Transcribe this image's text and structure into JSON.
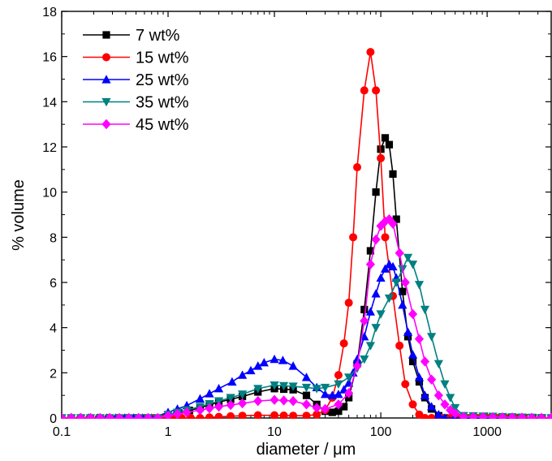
{
  "chart_data": {
    "type": "line",
    "xlabel": "diameter / μm",
    "ylabel": "% volume",
    "xscale": "log",
    "xlim": [
      0.1,
      4000
    ],
    "ylim": [
      0,
      18
    ],
    "x_ticks": [
      0.1,
      1,
      10,
      100,
      1000
    ],
    "x_tick_labels": [
      "0.1",
      "1",
      "10",
      "100",
      "1000"
    ],
    "y_ticks": [
      0,
      2,
      4,
      6,
      8,
      10,
      12,
      14,
      16,
      18
    ],
    "y_tick_labels": [
      "0",
      "2",
      "4",
      "6",
      "8",
      "10",
      "12",
      "14",
      "16",
      "18"
    ],
    "grid": false,
    "legend_position": "top-left",
    "series": [
      {
        "name": "7 wt%",
        "color": "#000000",
        "marker": "square",
        "x": [
          0.1,
          0.8,
          1,
          2,
          3,
          5,
          7,
          10,
          15,
          20,
          25,
          30,
          35,
          40,
          45,
          50,
          60,
          70,
          80,
          90,
          100,
          110,
          120,
          130,
          140,
          160,
          180,
          200,
          230,
          260,
          300,
          350,
          400,
          600,
          1000,
          4000
        ],
        "y": [
          0,
          0,
          0.1,
          0.45,
          0.7,
          0.95,
          1.15,
          1.3,
          1.25,
          1.0,
          0.6,
          0.3,
          0.25,
          0.3,
          0.5,
          0.9,
          2.4,
          4.8,
          7.4,
          10.0,
          11.9,
          12.4,
          12.1,
          10.8,
          8.8,
          5.6,
          3.6,
          2.5,
          1.6,
          0.9,
          0.4,
          0.1,
          0,
          0,
          0,
          0
        ]
      },
      {
        "name": "15 wt%",
        "color": "#ff0000",
        "marker": "circle",
        "x": [
          0.1,
          2,
          3,
          5,
          7,
          10,
          15,
          20,
          25,
          30,
          35,
          40,
          45,
          50,
          55,
          60,
          70,
          80,
          90,
          100,
          110,
          130,
          150,
          170,
          200,
          230,
          260,
          300,
          1000,
          4000
        ],
        "y": [
          0,
          0,
          0.05,
          0.1,
          0.12,
          0.12,
          0.1,
          0.1,
          0.15,
          0.35,
          0.9,
          1.9,
          3.3,
          5.1,
          8.0,
          11.1,
          14.5,
          16.2,
          14.5,
          11.5,
          8.0,
          5.4,
          3.2,
          1.5,
          0.6,
          0.15,
          0,
          0,
          0,
          0
        ]
      },
      {
        "name": "25 wt%",
        "color": "#0000ff",
        "marker": "triangle-up",
        "x": [
          0.1,
          0.7,
          1,
          1.5,
          2,
          3,
          4,
          5,
          6,
          7,
          8,
          10,
          12,
          15,
          20,
          25,
          30,
          35,
          40,
          45,
          50,
          55,
          60,
          70,
          80,
          90,
          100,
          110,
          120,
          130,
          140,
          160,
          180,
          200,
          230,
          260,
          300,
          350,
          400,
          600,
          4000
        ],
        "y": [
          0,
          0,
          0.25,
          0.55,
          0.85,
          1.3,
          1.6,
          1.9,
          2.1,
          2.3,
          2.45,
          2.6,
          2.55,
          2.3,
          1.8,
          1.35,
          1.05,
          1.0,
          1.05,
          1.25,
          1.55,
          2.0,
          2.6,
          3.6,
          4.7,
          5.5,
          6.2,
          6.6,
          6.8,
          6.7,
          6.2,
          5.0,
          3.8,
          2.8,
          1.8,
          1.0,
          0.5,
          0.15,
          0,
          0,
          0
        ]
      },
      {
        "name": "35 wt%",
        "color": "#008080",
        "marker": "triangle-down",
        "x": [
          0.1,
          0.8,
          1,
          1.5,
          2,
          3,
          5,
          7,
          10,
          15,
          20,
          25,
          30,
          40,
          50,
          60,
          70,
          80,
          90,
          100,
          120,
          140,
          160,
          180,
          200,
          230,
          260,
          300,
          350,
          400,
          450,
          500,
          600,
          4000
        ],
        "y": [
          0,
          0,
          0.15,
          0.35,
          0.5,
          0.75,
          1.05,
          1.3,
          1.45,
          1.4,
          1.35,
          1.3,
          1.35,
          1.5,
          1.8,
          2.2,
          2.6,
          3.2,
          4.0,
          4.6,
          5.3,
          6.0,
          6.6,
          7.1,
          6.8,
          5.9,
          4.8,
          3.6,
          2.4,
          1.5,
          0.9,
          0.45,
          0.1,
          0
        ]
      },
      {
        "name": "45 wt%",
        "color": "#ff00ff",
        "marker": "diamond",
        "x": [
          0.1,
          0.8,
          1,
          1.5,
          2,
          3,
          5,
          7,
          10,
          15,
          20,
          25,
          30,
          40,
          50,
          60,
          70,
          80,
          90,
          100,
          110,
          120,
          130,
          150,
          170,
          200,
          230,
          260,
          300,
          350,
          400,
          450,
          500,
          600,
          4000
        ],
        "y": [
          0,
          0,
          0.1,
          0.25,
          0.35,
          0.5,
          0.65,
          0.75,
          0.8,
          0.75,
          0.6,
          0.45,
          0.4,
          0.6,
          1.1,
          2.3,
          4.3,
          6.8,
          7.9,
          8.5,
          8.7,
          8.8,
          8.6,
          7.3,
          6.0,
          4.6,
          3.5,
          2.5,
          1.7,
          1.0,
          0.6,
          0.35,
          0.2,
          0.05,
          0
        ]
      }
    ]
  }
}
